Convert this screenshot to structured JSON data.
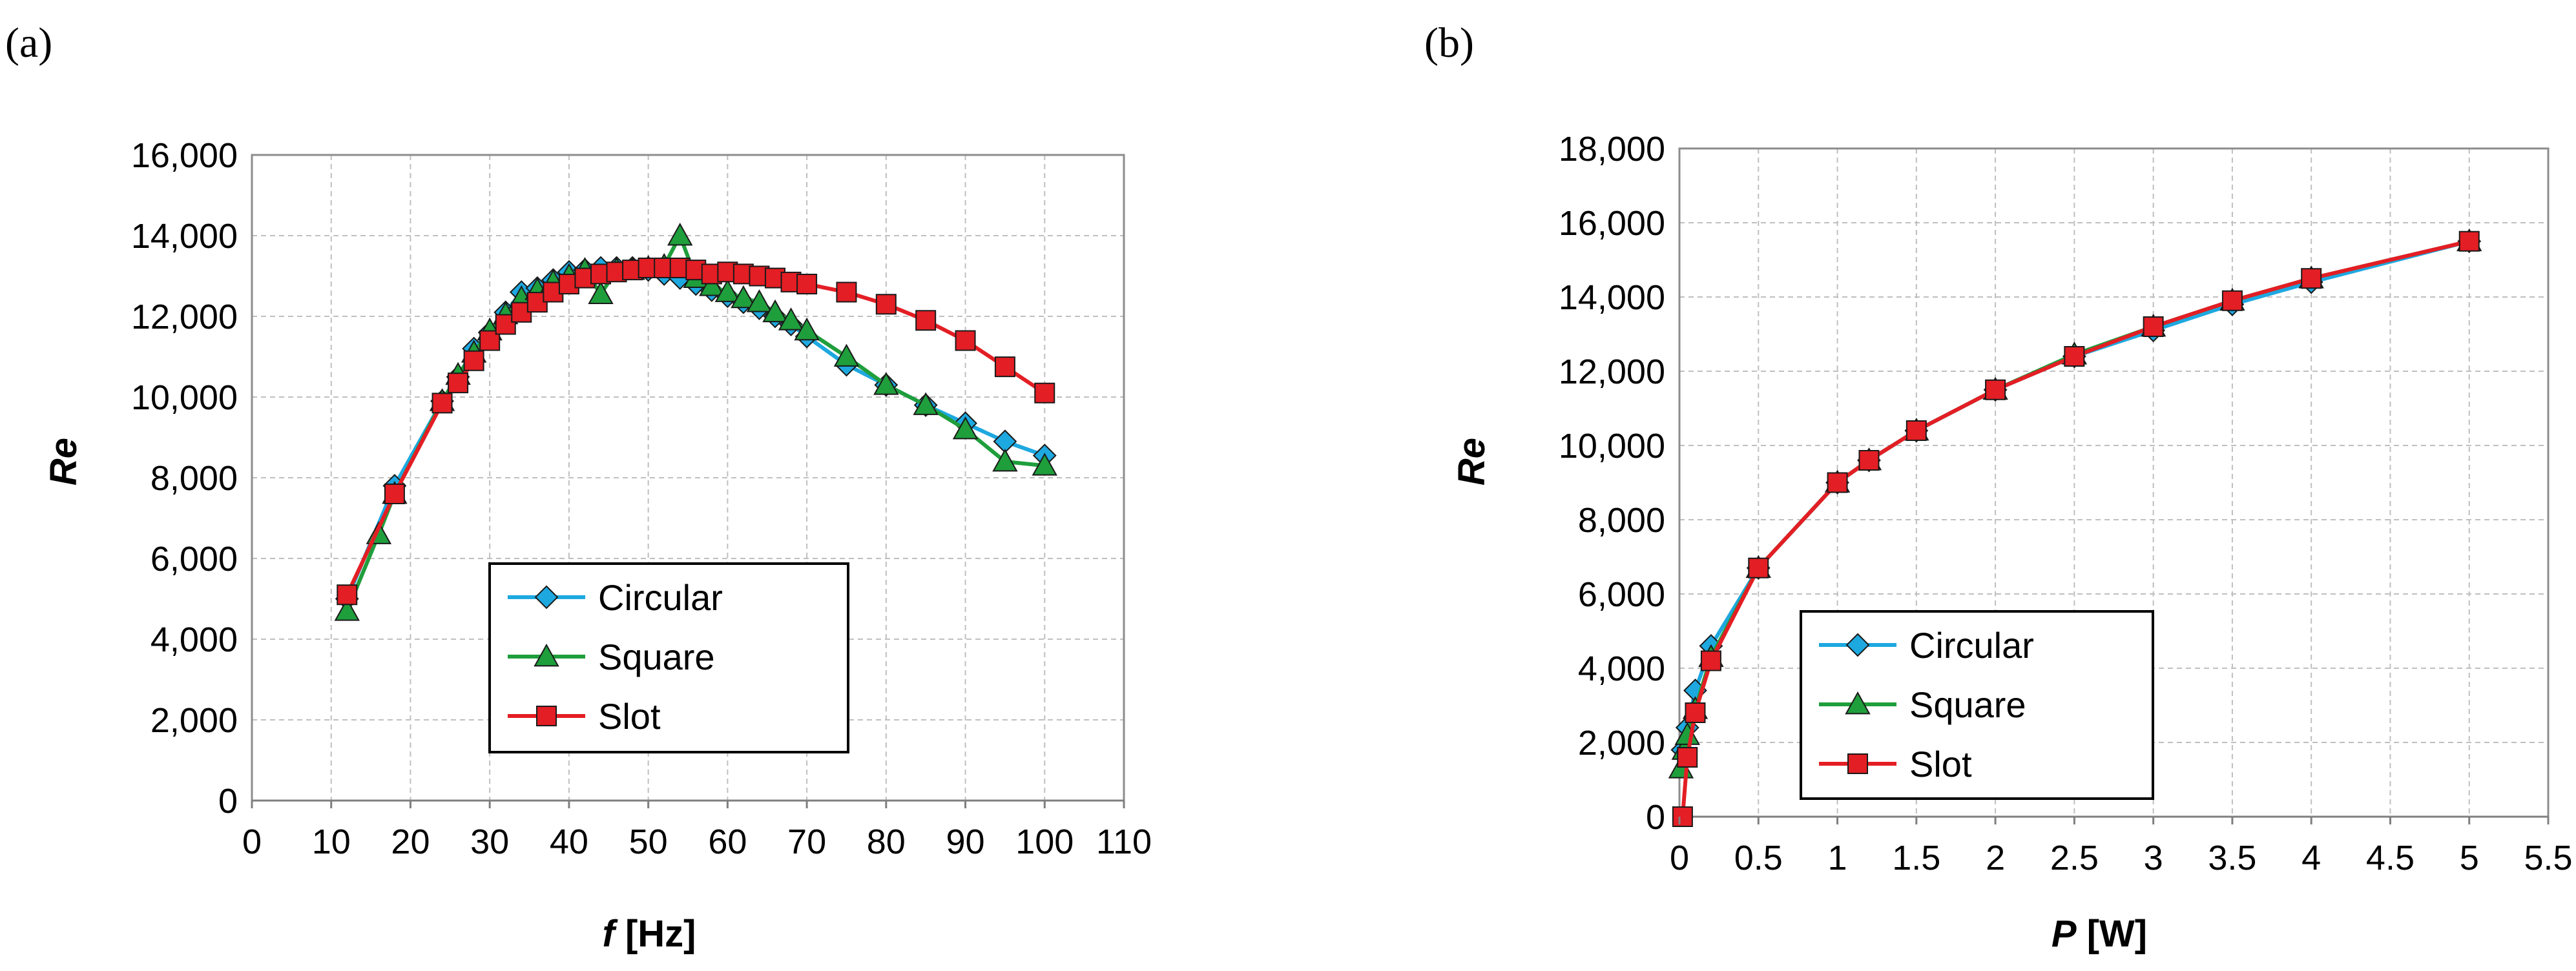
{
  "chart_data": [
    {
      "panel": "(a)",
      "type": "line",
      "title": "",
      "xlabel_var": "f",
      "xlabel_unit": " [Hz]",
      "ylabel": "Re",
      "xlim": [
        0,
        110
      ],
      "ylim": [
        0,
        16000
      ],
      "x_ticks": [
        0,
        10,
        20,
        30,
        40,
        50,
        60,
        70,
        80,
        90,
        100,
        110
      ],
      "x_tick_labels": [
        "0",
        "10",
        "20",
        "30",
        "40",
        "50",
        "60",
        "70",
        "80",
        "90",
        "100",
        "110"
      ],
      "y_ticks": [
        0,
        2000,
        4000,
        6000,
        8000,
        10000,
        12000,
        14000,
        16000
      ],
      "y_tick_labels": [
        "0",
        "2,000",
        "4,000",
        "6,000",
        "8,000",
        "10,000",
        "12,000",
        "14,000",
        "16,000"
      ],
      "legend": [
        "Circular",
        "Square",
        "Slot"
      ],
      "series": [
        {
          "name": "Circular",
          "color": "#1ea8e0",
          "marker": "diamond",
          "x": [
            12,
            18,
            24,
            26,
            28,
            30,
            32,
            34,
            36,
            38,
            40,
            42,
            44,
            46,
            48,
            50,
            52,
            54,
            56,
            58,
            60,
            62,
            64,
            66,
            68,
            70,
            75,
            80,
            85,
            90,
            95,
            100
          ],
          "y": [
            5000,
            7800,
            9900,
            10500,
            11200,
            11600,
            12100,
            12600,
            12700,
            12900,
            13100,
            13150,
            13200,
            13200,
            13200,
            13150,
            13050,
            12950,
            12800,
            12650,
            12500,
            12350,
            12200,
            12000,
            11800,
            11500,
            10800,
            10300,
            9800,
            9350,
            8900,
            8550
          ]
        },
        {
          "name": "Square",
          "color": "#1f9e3c",
          "marker": "triangle",
          "x": [
            12,
            16,
            18,
            24,
            26,
            28,
            30,
            32,
            34,
            36,
            38,
            40,
            42,
            44,
            46,
            48,
            50,
            52,
            54,
            56,
            58,
            60,
            62,
            64,
            66,
            68,
            70,
            75,
            80,
            85,
            90,
            95,
            100
          ],
          "y": [
            4700,
            6600,
            7600,
            9900,
            10550,
            11100,
            11650,
            12050,
            12450,
            12650,
            12850,
            13000,
            13150,
            12550,
            13150,
            13150,
            13200,
            13250,
            14000,
            12950,
            12750,
            12600,
            12450,
            12350,
            12100,
            11900,
            11650,
            11000,
            10300,
            9800,
            9200,
            8400,
            8300
          ]
        },
        {
          "name": "Slot",
          "color": "#e31e24",
          "marker": "square",
          "x": [
            12,
            18,
            24,
            26,
            28,
            30,
            32,
            34,
            36,
            38,
            40,
            42,
            44,
            46,
            48,
            50,
            52,
            54,
            56,
            58,
            60,
            62,
            64,
            66,
            68,
            70,
            75,
            80,
            85,
            90,
            95,
            100
          ],
          "y": [
            5100,
            7600,
            9850,
            10350,
            10900,
            11400,
            11800,
            12100,
            12350,
            12600,
            12800,
            12950,
            13050,
            13100,
            13150,
            13200,
            13200,
            13200,
            13150,
            13050,
            13100,
            13050,
            13000,
            12950,
            12850,
            12800,
            12600,
            12300,
            11900,
            11400,
            10750,
            10100
          ]
        }
      ]
    },
    {
      "panel": "(b)",
      "type": "line",
      "title": "",
      "xlabel_var": "P",
      "xlabel_unit": " [W]",
      "ylabel": "Re",
      "xlim": [
        0,
        5.5
      ],
      "ylim": [
        0,
        18000
      ],
      "x_ticks": [
        0,
        0.5,
        1,
        1.5,
        2,
        2.5,
        3,
        3.5,
        4,
        4.5,
        5,
        5.5
      ],
      "x_tick_labels": [
        "0",
        "0.5",
        "1",
        "1.5",
        "2",
        "2.5",
        "3",
        "3.5",
        "4",
        "4.5",
        "5",
        "5.5"
      ],
      "y_ticks": [
        0,
        2000,
        4000,
        6000,
        8000,
        10000,
        12000,
        14000,
        16000,
        18000
      ],
      "y_tick_labels": [
        "0",
        "2,000",
        "4,000",
        "6,000",
        "8,000",
        "10,000",
        "12,000",
        "14,000",
        "16,000",
        "18,000"
      ],
      "legend": [
        "Circular",
        "Square",
        "Slot"
      ],
      "series": [
        {
          "name": "Circular",
          "color": "#1ea8e0",
          "marker": "diamond",
          "x": [
            0.02,
            0.05,
            0.1,
            0.2,
            0.5,
            1,
            1.2,
            1.5,
            2,
            2.5,
            3,
            3.5,
            4,
            5
          ],
          "y": [
            1800,
            2400,
            3400,
            4600,
            6700,
            9000,
            9600,
            10400,
            11500,
            12400,
            13100,
            13800,
            14400,
            15500
          ]
        },
        {
          "name": "Square",
          "color": "#1f9e3c",
          "marker": "triangle",
          "x": [
            0.01,
            0.03,
            0.05,
            0.1,
            0.2,
            0.5,
            1,
            1.2,
            1.5,
            2,
            2.5,
            3,
            3.5,
            4,
            5
          ],
          "y": [
            1300,
            1800,
            2200,
            2900,
            4300,
            6700,
            9000,
            9600,
            10400,
            11500,
            12450,
            13200,
            13900,
            14500,
            15500
          ]
        },
        {
          "name": "Slot",
          "color": "#e31e24",
          "marker": "square",
          "x": [
            0.02,
            0.05,
            0.1,
            0.2,
            0.5,
            1,
            1.2,
            1.5,
            2,
            2.5,
            3,
            3.5,
            4,
            5
          ],
          "y": [
            0,
            1600,
            2800,
            4200,
            6700,
            9000,
            9600,
            10400,
            11500,
            12400,
            13200,
            13900,
            14500,
            15500
          ]
        }
      ]
    }
  ]
}
